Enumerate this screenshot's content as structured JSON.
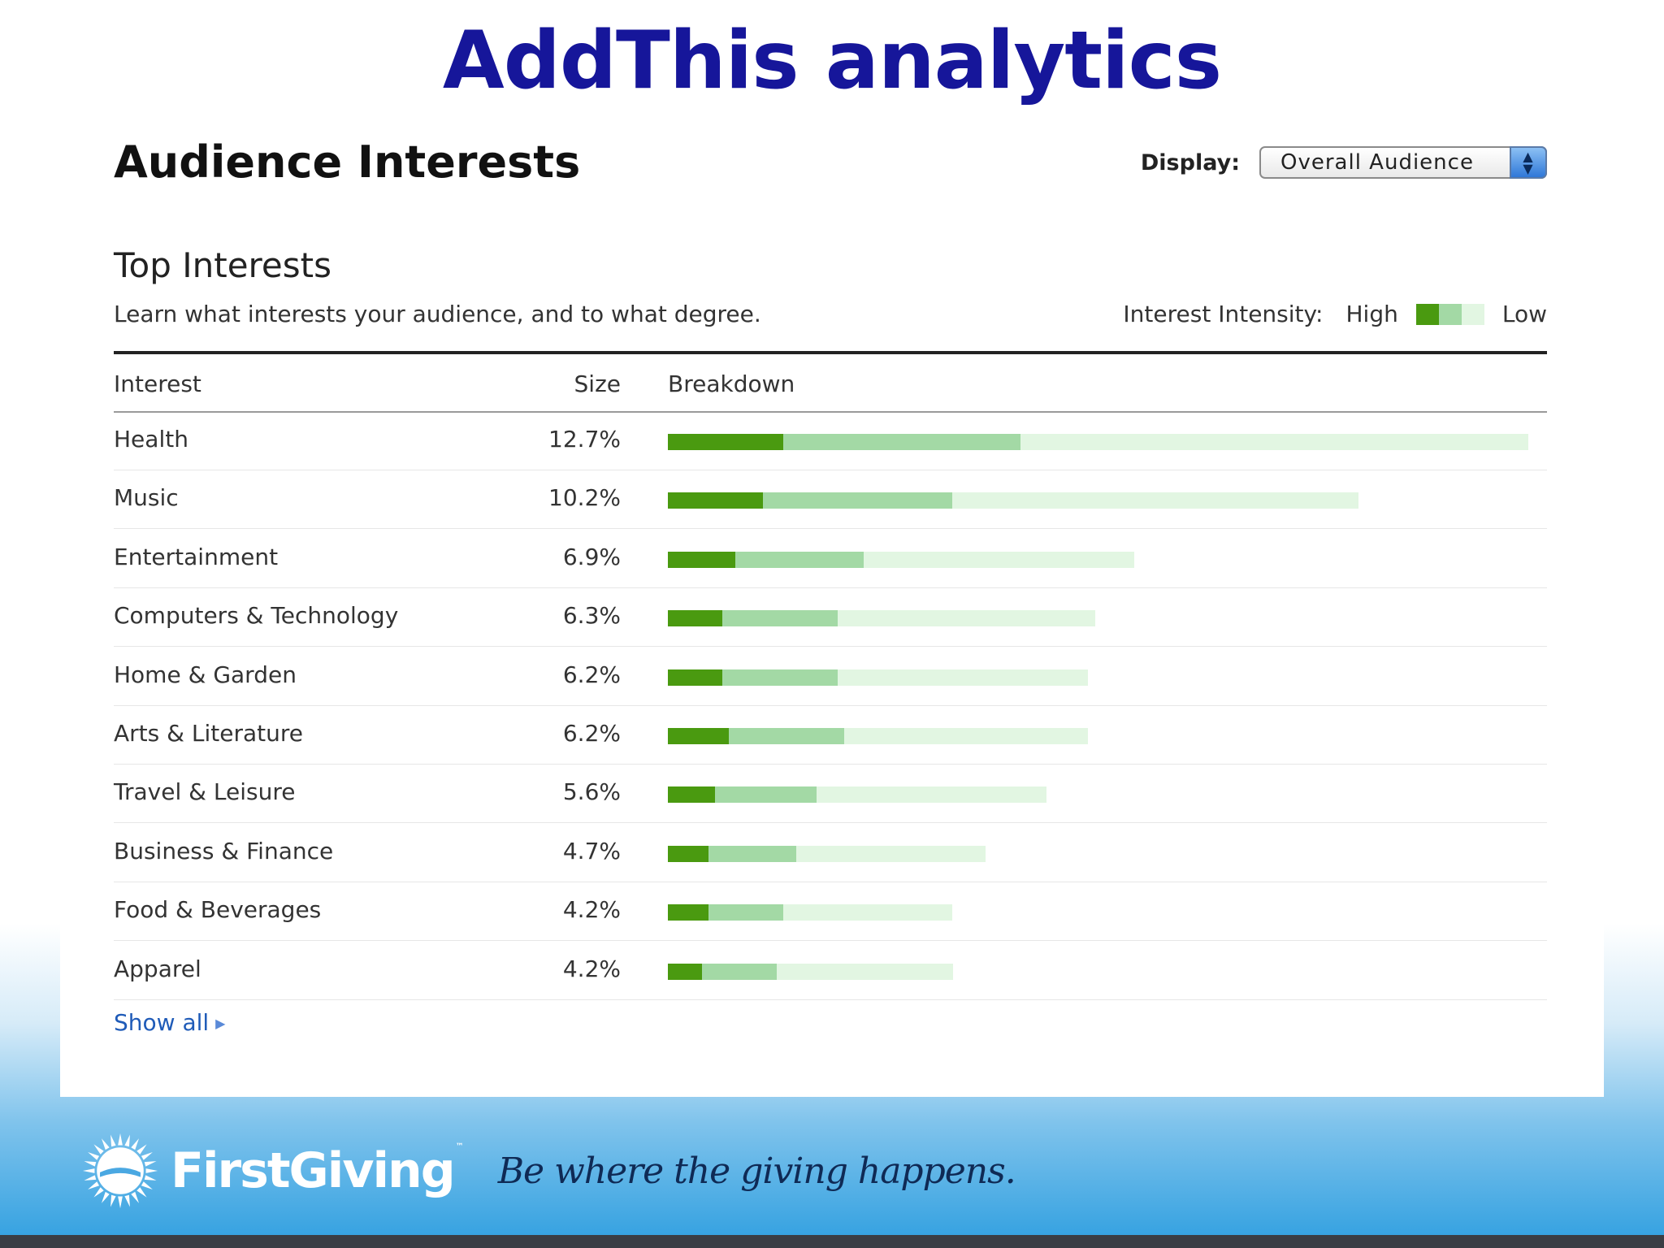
{
  "slide": {
    "title": "AddThis analytics"
  },
  "panel": {
    "heading": "Audience Interests",
    "display": {
      "label": "Display:",
      "selected": "Overall Audience"
    },
    "section_title": "Top Interests",
    "subtitle": "Learn what interests your audience, and to what degree.",
    "intensity": {
      "label": "Interest Intensity:",
      "high": "High",
      "low": "Low"
    },
    "columns": {
      "interest": "Interest",
      "size": "Size",
      "breakdown": "Breakdown"
    },
    "show_all": "Show all"
  },
  "colors": {
    "high": "#4a9a10",
    "mid": "#a3d9a5",
    "low": "#e2f6e2",
    "title": "#16169a",
    "link": "#1f5bb8"
  },
  "icons": {
    "select_arrows": "updown-arrows-icon",
    "show_all_arrow": "triangle-right-icon",
    "logo": "sun-logo-icon"
  },
  "chart_data": {
    "type": "bar",
    "stacked": true,
    "categories": [
      "Health",
      "Music",
      "Entertainment",
      "Computers & Technology",
      "Home & Garden",
      "Arts & Literature",
      "Travel & Leisure",
      "Business & Finance",
      "Food & Beverages",
      "Apparel"
    ],
    "sizes": [
      "12.7%",
      "10.2%",
      "6.9%",
      "6.3%",
      "6.2%",
      "6.2%",
      "5.6%",
      "4.7%",
      "4.2%",
      "4.2%"
    ],
    "series": [
      {
        "name": "High",
        "values": [
          1.7,
          1.4,
          1.0,
          0.8,
          0.8,
          0.9,
          0.7,
          0.6,
          0.6,
          0.5
        ]
      },
      {
        "name": "",
        "values": [
          3.5,
          2.8,
          1.9,
          1.7,
          1.7,
          1.7,
          1.5,
          1.3,
          1.1,
          1.1
        ]
      },
      {
        "name": "Low",
        "values": [
          7.5,
          6.0,
          4.0,
          3.8,
          3.7,
          3.6,
          3.4,
          2.8,
          2.5,
          2.6
        ]
      }
    ],
    "xlim": [
      0,
      12.7
    ]
  },
  "footer": {
    "brand": "FirstGiving",
    "tagline": "Be where the giving happens."
  }
}
